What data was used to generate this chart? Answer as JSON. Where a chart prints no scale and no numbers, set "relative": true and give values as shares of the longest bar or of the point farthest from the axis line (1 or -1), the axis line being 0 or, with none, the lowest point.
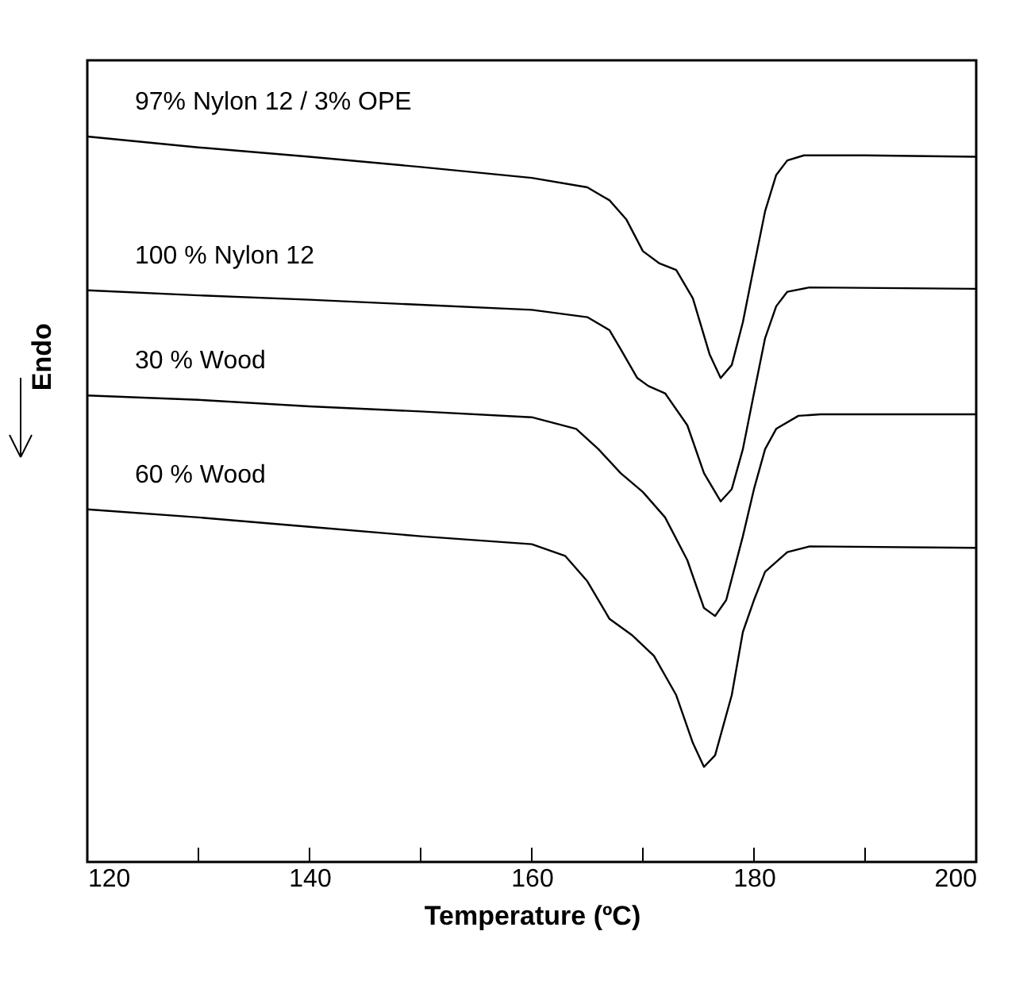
{
  "chart_data": {
    "type": "line",
    "relative": true,
    "xlabel": "Temperature (ºC)",
    "ylabel": "Endo",
    "xlim": [
      120,
      200
    ],
    "xticks": [
      120,
      {
        "value": 130,
        "label": null
      },
      140,
      {
        "value": 150,
        "label": null
      },
      160,
      {
        "value": 170,
        "label": null
      },
      180,
      {
        "value": 190,
        "label": null
      },
      200
    ],
    "grid": false,
    "legend": false,
    "marker": "none",
    "line_style": "solid",
    "tick_labels": "x",
    "series": [
      {
        "name": "97% Nylon 12 / 3% OPE",
        "color": "#000000",
        "x": [
          120,
          130,
          140,
          150,
          160,
          165,
          167,
          168.5,
          170,
          171.5,
          173,
          174.5,
          176,
          177,
          178,
          179,
          180,
          181,
          182,
          183,
          184.5,
          190,
          200
        ],
        "values": [
          1.0,
          0.985,
          0.972,
          0.958,
          0.943,
          0.93,
          0.912,
          0.886,
          0.842,
          0.825,
          0.816,
          0.777,
          0.7,
          0.667,
          0.685,
          0.744,
          0.821,
          0.897,
          0.947,
          0.967,
          0.974,
          0.974,
          0.972
        ]
      },
      {
        "name": "100 % Nylon 12",
        "color": "#000000",
        "x": [
          120,
          130,
          140,
          150,
          160,
          165,
          167,
          168,
          169.5,
          170.5,
          172,
          174,
          175.5,
          177,
          178,
          179,
          180,
          181,
          182,
          183,
          185,
          200
        ],
        "values": [
          0.788,
          0.781,
          0.775,
          0.768,
          0.761,
          0.751,
          0.733,
          0.707,
          0.667,
          0.656,
          0.646,
          0.602,
          0.536,
          0.497,
          0.514,
          0.569,
          0.646,
          0.722,
          0.766,
          0.786,
          0.792,
          0.79
        ]
      },
      {
        "name": "30 % Wood",
        "color": "#000000",
        "x": [
          120,
          130,
          140,
          150,
          160,
          164,
          166,
          168,
          170,
          172,
          174,
          175.5,
          176.5,
          177.5,
          179,
          180,
          181,
          182,
          184,
          186,
          200
        ],
        "values": [
          0.643,
          0.637,
          0.628,
          0.621,
          0.613,
          0.597,
          0.569,
          0.536,
          0.51,
          0.475,
          0.416,
          0.35,
          0.339,
          0.361,
          0.449,
          0.514,
          0.569,
          0.597,
          0.615,
          0.617,
          0.617
        ]
      },
      {
        "name": "60 % Wood",
        "color": "#000000",
        "x": [
          120,
          130,
          140,
          150,
          160,
          163,
          165,
          167,
          169,
          171,
          173,
          174.5,
          175.5,
          176.5,
          178,
          179,
          180,
          181,
          183,
          185,
          200
        ],
        "values": [
          0.486,
          0.475,
          0.462,
          0.449,
          0.438,
          0.422,
          0.387,
          0.335,
          0.313,
          0.284,
          0.23,
          0.164,
          0.131,
          0.147,
          0.23,
          0.317,
          0.361,
          0.4,
          0.427,
          0.435,
          0.433
        ]
      }
    ]
  }
}
